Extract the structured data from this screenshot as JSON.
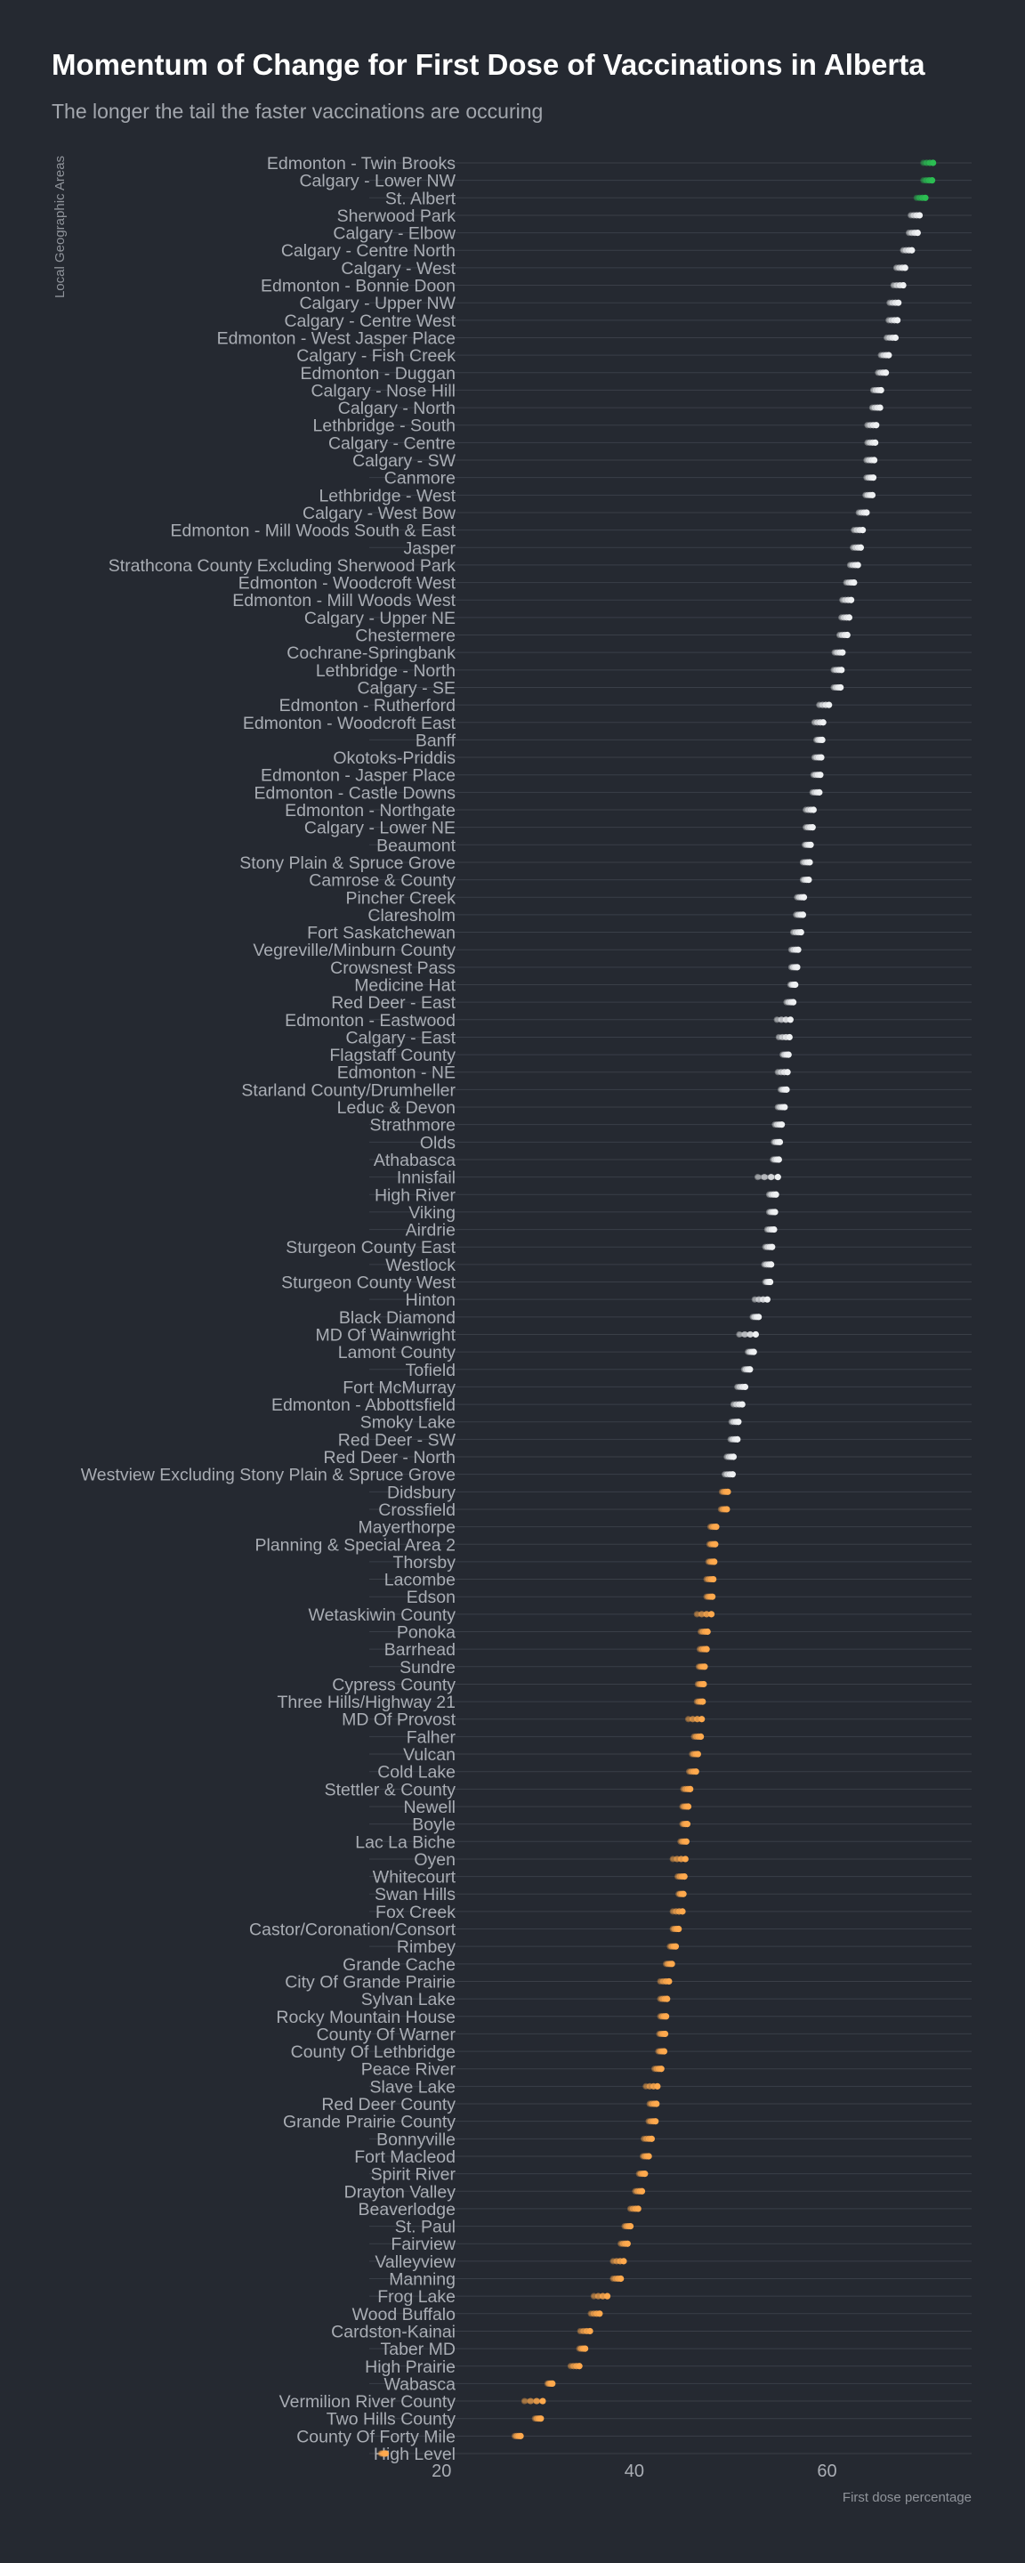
{
  "title": "Momentum of Change for First Dose of Vaccinations in Alberta",
  "subtitle": "The longer the tail the faster vaccinations are occuring",
  "colors": {
    "background": "#252931",
    "high": "#2bbd52",
    "mid": "#eef0f2",
    "low": "#ffa94d",
    "gridline": "#3a3f48"
  },
  "chart_data": {
    "type": "scatter",
    "ylabel": "Local Geographic Areas",
    "xlabel": "First dose percentage",
    "xlim": [
      12.5,
      75
    ],
    "xticks": [
      20,
      40,
      60
    ],
    "grid": true,
    "series": [
      {
        "category": "Edmonton - Twin Brooks",
        "x": 71.0,
        "prev": 70.0
      },
      {
        "category": "Calgary - Lower NW",
        "x": 70.9,
        "prev": 70.0
      },
      {
        "category": "St. Albert",
        "x": 70.2,
        "prev": 69.3
      },
      {
        "category": "Sherwood Park",
        "x": 69.6,
        "prev": 68.7
      },
      {
        "category": "Calgary - Elbow",
        "x": 69.4,
        "prev": 68.5
      },
      {
        "category": "Calgary - Centre North",
        "x": 68.8,
        "prev": 67.9
      },
      {
        "category": "Calgary - West",
        "x": 68.1,
        "prev": 67.2
      },
      {
        "category": "Edmonton - Bonnie Doon",
        "x": 67.9,
        "prev": 66.9
      },
      {
        "category": "Calgary - Upper NW",
        "x": 67.4,
        "prev": 66.5
      },
      {
        "category": "Calgary - Centre West",
        "x": 67.3,
        "prev": 66.4
      },
      {
        "category": "Edmonton - West Jasper Place",
        "x": 67.1,
        "prev": 66.2
      },
      {
        "category": "Calgary - Fish Creek",
        "x": 66.4,
        "prev": 65.6
      },
      {
        "category": "Edmonton - Duggan",
        "x": 66.1,
        "prev": 65.3
      },
      {
        "category": "Calgary - Nose Hill",
        "x": 65.6,
        "prev": 64.8
      },
      {
        "category": "Calgary - North",
        "x": 65.5,
        "prev": 64.7
      },
      {
        "category": "Lethbridge - South",
        "x": 65.1,
        "prev": 64.2
      },
      {
        "category": "Calgary - Centre",
        "x": 65.0,
        "prev": 64.2
      },
      {
        "category": "Calgary - SW",
        "x": 64.9,
        "prev": 64.1
      },
      {
        "category": "Canmore",
        "x": 64.8,
        "prev": 64.1
      },
      {
        "category": "Lethbridge - West",
        "x": 64.7,
        "prev": 64.0
      },
      {
        "category": "Calgary - West Bow",
        "x": 64.1,
        "prev": 63.3
      },
      {
        "category": "Edmonton - Mill Woods South & East",
        "x": 63.7,
        "prev": 62.8
      },
      {
        "category": "Jasper",
        "x": 63.5,
        "prev": 62.7
      },
      {
        "category": "Strathcona County Excluding Sherwood Park",
        "x": 63.2,
        "prev": 62.4
      },
      {
        "category": "Edmonton - Woodcroft West",
        "x": 62.8,
        "prev": 62.0
      },
      {
        "category": "Edmonton - Mill Woods West",
        "x": 62.5,
        "prev": 61.6
      },
      {
        "category": "Calgary - Upper NE",
        "x": 62.3,
        "prev": 61.5
      },
      {
        "category": "Chestermere",
        "x": 62.1,
        "prev": 61.3
      },
      {
        "category": "Cochrane-Springbank",
        "x": 61.6,
        "prev": 60.8
      },
      {
        "category": "Lethbridge - North",
        "x": 61.5,
        "prev": 60.7
      },
      {
        "category": "Calgary - SE",
        "x": 61.4,
        "prev": 60.7
      },
      {
        "category": "Edmonton - Rutherford",
        "x": 60.2,
        "prev": 59.2
      },
      {
        "category": "Edmonton - Woodcroft East",
        "x": 59.6,
        "prev": 58.7
      },
      {
        "category": "Banff",
        "x": 59.5,
        "prev": 58.9
      },
      {
        "category": "Okotoks-Priddis",
        "x": 59.4,
        "prev": 58.7
      },
      {
        "category": "Edmonton - Jasper Place",
        "x": 59.3,
        "prev": 58.6
      },
      {
        "category": "Edmonton - Castle Downs",
        "x": 59.2,
        "prev": 58.5
      },
      {
        "category": "Edmonton - Northgate",
        "x": 58.6,
        "prev": 57.8
      },
      {
        "category": "Calgary - Lower NE",
        "x": 58.5,
        "prev": 57.8
      },
      {
        "category": "Beaumont",
        "x": 58.3,
        "prev": 57.7
      },
      {
        "category": "Stony Plain & Spruce Grove",
        "x": 58.2,
        "prev": 57.5
      },
      {
        "category": "Camrose & County",
        "x": 58.1,
        "prev": 57.5
      },
      {
        "category": "Pincher Creek",
        "x": 57.6,
        "prev": 56.9
      },
      {
        "category": "Claresholm",
        "x": 57.5,
        "prev": 56.8
      },
      {
        "category": "Fort Saskatchewan",
        "x": 57.3,
        "prev": 56.5
      },
      {
        "category": "Vegreville/Minburn County",
        "x": 57.0,
        "prev": 56.3
      },
      {
        "category": "Crowsnest Pass",
        "x": 56.9,
        "prev": 56.3
      },
      {
        "category": "Medicine Hat",
        "x": 56.7,
        "prev": 56.2
      },
      {
        "category": "Red Deer - East",
        "x": 56.5,
        "prev": 55.8
      },
      {
        "category": "Edmonton - Eastwood",
        "x": 56.2,
        "prev": 54.8
      },
      {
        "category": "Calgary - East",
        "x": 56.1,
        "prev": 55.0
      },
      {
        "category": "Flagstaff County",
        "x": 56.0,
        "prev": 55.4
      },
      {
        "category": "Edmonton - NE",
        "x": 55.9,
        "prev": 54.9
      },
      {
        "category": "Starland County/Drumheller",
        "x": 55.8,
        "prev": 55.2
      },
      {
        "category": "Leduc & Devon",
        "x": 55.6,
        "prev": 54.9
      },
      {
        "category": "Strathmore",
        "x": 55.3,
        "prev": 54.6
      },
      {
        "category": "Olds",
        "x": 55.1,
        "prev": 54.5
      },
      {
        "category": "Athabasca",
        "x": 55.0,
        "prev": 54.4
      },
      {
        "category": "Innisfail",
        "x": 54.9,
        "prev": 52.8
      },
      {
        "category": "High River",
        "x": 54.7,
        "prev": 54.0
      },
      {
        "category": "Viking",
        "x": 54.6,
        "prev": 54.0
      },
      {
        "category": "Airdrie",
        "x": 54.5,
        "prev": 53.8
      },
      {
        "category": "Sturgeon County East",
        "x": 54.3,
        "prev": 53.6
      },
      {
        "category": "Westlock",
        "x": 54.2,
        "prev": 53.5
      },
      {
        "category": "Sturgeon County West",
        "x": 54.1,
        "prev": 53.6
      },
      {
        "category": "Hinton",
        "x": 53.8,
        "prev": 52.5
      },
      {
        "category": "Black Diamond",
        "x": 52.9,
        "prev": 52.3
      },
      {
        "category": "MD Of Wainwright",
        "x": 52.6,
        "prev": 50.9
      },
      {
        "category": "Lamont County",
        "x": 52.4,
        "prev": 51.8
      },
      {
        "category": "Tofield",
        "x": 52.0,
        "prev": 51.4
      },
      {
        "category": "Fort McMurray",
        "x": 51.5,
        "prev": 50.7
      },
      {
        "category": "Edmonton - Abbottsfield",
        "x": 51.2,
        "prev": 50.3
      },
      {
        "category": "Smoky Lake",
        "x": 50.8,
        "prev": 50.1
      },
      {
        "category": "Red Deer - SW",
        "x": 50.7,
        "prev": 50.0
      },
      {
        "category": "Red Deer - North",
        "x": 50.3,
        "prev": 49.6
      },
      {
        "category": "Westview Excluding Stony Plain & Spruce Grove",
        "x": 50.2,
        "prev": 49.4
      },
      {
        "category": "Didsbury",
        "x": 49.7,
        "prev": 49.1
      },
      {
        "category": "Crossfield",
        "x": 49.6,
        "prev": 49.0
      },
      {
        "category": "Mayerthorpe",
        "x": 48.5,
        "prev": 47.9
      },
      {
        "category": "Planning & Special Area 2",
        "x": 48.4,
        "prev": 47.8
      },
      {
        "category": "Thorsby",
        "x": 48.3,
        "prev": 47.7
      },
      {
        "category": "Lacombe",
        "x": 48.2,
        "prev": 47.5
      },
      {
        "category": "Edson",
        "x": 48.1,
        "prev": 47.5
      },
      {
        "category": "Wetaskiwin County",
        "x": 48.0,
        "prev": 46.5
      },
      {
        "category": "Ponoka",
        "x": 47.6,
        "prev": 46.9
      },
      {
        "category": "Barrhead",
        "x": 47.5,
        "prev": 46.8
      },
      {
        "category": "Sundre",
        "x": 47.3,
        "prev": 46.7
      },
      {
        "category": "Cypress County",
        "x": 47.2,
        "prev": 46.6
      },
      {
        "category": "Three Hills/Highway 21",
        "x": 47.1,
        "prev": 46.5
      },
      {
        "category": "MD Of Provost",
        "x": 47.0,
        "prev": 45.6
      },
      {
        "category": "Falher",
        "x": 46.9,
        "prev": 46.2
      },
      {
        "category": "Vulcan",
        "x": 46.6,
        "prev": 46.0
      },
      {
        "category": "Cold Lake",
        "x": 46.4,
        "prev": 45.7
      },
      {
        "category": "Stettler & County",
        "x": 45.8,
        "prev": 45.1
      },
      {
        "category": "Newell",
        "x": 45.6,
        "prev": 45.0
      },
      {
        "category": "Boyle",
        "x": 45.5,
        "prev": 45.0
      },
      {
        "category": "Lac La Biche",
        "x": 45.4,
        "prev": 44.8
      },
      {
        "category": "Oyen",
        "x": 45.3,
        "prev": 44.0
      },
      {
        "category": "Whitecourt",
        "x": 45.2,
        "prev": 44.5
      },
      {
        "category": "Swan Hills",
        "x": 45.1,
        "prev": 44.6
      },
      {
        "category": "Fox Creek",
        "x": 45.0,
        "prev": 44.0
      },
      {
        "category": "Castor/Coronation/Consort",
        "x": 44.6,
        "prev": 44.0
      },
      {
        "category": "Rimbey",
        "x": 44.3,
        "prev": 43.7
      },
      {
        "category": "Grande Cache",
        "x": 43.9,
        "prev": 43.3
      },
      {
        "category": "City Of Grande Prairie",
        "x": 43.6,
        "prev": 42.7
      },
      {
        "category": "Sylvan Lake",
        "x": 43.4,
        "prev": 42.7
      },
      {
        "category": "Rocky Mountain House",
        "x": 43.3,
        "prev": 42.7
      },
      {
        "category": "County Of Warner",
        "x": 43.2,
        "prev": 42.6
      },
      {
        "category": "County Of Lethbridge",
        "x": 43.1,
        "prev": 42.5
      },
      {
        "category": "Peace River",
        "x": 42.8,
        "prev": 42.1
      },
      {
        "category": "Slave Lake",
        "x": 42.4,
        "prev": 41.2
      },
      {
        "category": "Red Deer County",
        "x": 42.3,
        "prev": 41.6
      },
      {
        "category": "Grande Prairie County",
        "x": 42.2,
        "prev": 41.5
      },
      {
        "category": "Bonnyville",
        "x": 41.8,
        "prev": 41.0
      },
      {
        "category": "Fort Macleod",
        "x": 41.5,
        "prev": 40.9
      },
      {
        "category": "Spirit River",
        "x": 41.1,
        "prev": 40.5
      },
      {
        "category": "Drayton Valley",
        "x": 40.8,
        "prev": 40.1
      },
      {
        "category": "Beaverlodge",
        "x": 40.4,
        "prev": 39.6
      },
      {
        "category": "St. Paul",
        "x": 39.6,
        "prev": 39.0
      },
      {
        "category": "Fairview",
        "x": 39.3,
        "prev": 38.6
      },
      {
        "category": "Valleyview",
        "x": 38.9,
        "prev": 37.8
      },
      {
        "category": "Manning",
        "x": 38.6,
        "prev": 37.8
      },
      {
        "category": "Frog Lake",
        "x": 37.2,
        "prev": 35.8
      },
      {
        "category": "Wood Buffalo",
        "x": 36.4,
        "prev": 35.5
      },
      {
        "category": "Cardston-Kainai",
        "x": 35.4,
        "prev": 34.4
      },
      {
        "category": "Taber MD",
        "x": 34.9,
        "prev": 34.3
      },
      {
        "category": "High Prairie",
        "x": 34.3,
        "prev": 33.4
      },
      {
        "category": "Wabasca",
        "x": 31.5,
        "prev": 31.0
      },
      {
        "category": "Vermilion River County",
        "x": 30.5,
        "prev": 28.6
      },
      {
        "category": "Two Hills County",
        "x": 30.3,
        "prev": 29.7
      },
      {
        "category": "County Of Forty Mile",
        "x": 28.2,
        "prev": 27.6
      },
      {
        "category": "High Level",
        "x": 14.2,
        "prev": 13.7
      }
    ]
  }
}
